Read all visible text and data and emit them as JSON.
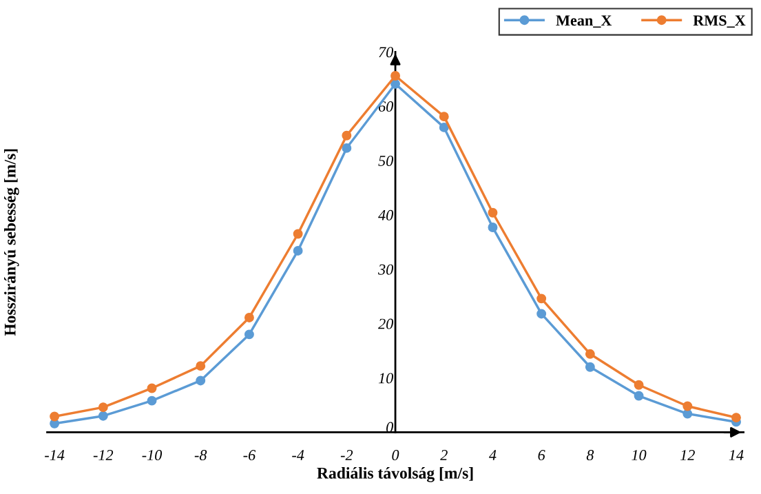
{
  "chart_data": {
    "type": "line",
    "xlabel": "Radiális távolság [m/s]",
    "ylabel": "Hosszirányú sebesség [m/s]",
    "x": [
      -14,
      -12,
      -10,
      -8,
      -6,
      -4,
      -2,
      0,
      2,
      4,
      6,
      8,
      10,
      12,
      14
    ],
    "series": [
      {
        "name": "Mean_X",
        "color": "#5b9bd5",
        "values": [
          1.6,
          3.0,
          5.8,
          9.5,
          18.0,
          33.4,
          52.3,
          64.1,
          56.1,
          37.7,
          21.8,
          12.0,
          6.7,
          3.4,
          1.9
        ]
      },
      {
        "name": "RMS_X",
        "color": "#ed7d31",
        "values": [
          2.9,
          4.6,
          8.1,
          12.2,
          21.1,
          36.5,
          54.6,
          65.6,
          58.1,
          40.4,
          24.6,
          14.4,
          8.7,
          4.8,
          2.7
        ]
      }
    ],
    "xlim": [
      -14.3,
      14.3
    ],
    "xticks": [
      -14,
      -12,
      -10,
      -8,
      -6,
      -4,
      -2,
      0,
      2,
      4,
      6,
      8,
      10,
      12,
      14
    ],
    "ylim": [
      0,
      70
    ],
    "yticks": [
      0,
      10,
      20,
      30,
      40,
      50,
      60,
      70
    ],
    "grid": false,
    "legend": "top right",
    "marker": "circle",
    "line_style": "solid"
  }
}
